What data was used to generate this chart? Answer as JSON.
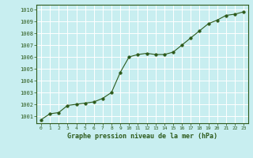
{
  "x": [
    0,
    1,
    2,
    3,
    4,
    5,
    6,
    7,
    8,
    9,
    10,
    11,
    12,
    13,
    14,
    15,
    16,
    17,
    18,
    19,
    20,
    21,
    22,
    23
  ],
  "y": [
    1000.7,
    1001.2,
    1001.3,
    1001.9,
    1002.0,
    1002.1,
    1002.2,
    1002.5,
    1003.0,
    1004.7,
    1006.0,
    1006.2,
    1006.3,
    1006.2,
    1006.2,
    1006.4,
    1007.0,
    1007.6,
    1008.2,
    1008.8,
    1009.1,
    1009.5,
    1009.6,
    1009.8
  ],
  "line_color": "#2d5a1b",
  "marker_color": "#2d5a1b",
  "bg_color": "#c8eef0",
  "grid_color": "#ffffff",
  "xlabel": "Graphe pression niveau de la mer (hPa)",
  "xlabel_color": "#2d5a1b",
  "tick_color": "#2d5a1b",
  "ylim": [
    1000.4,
    1010.4
  ],
  "xlim": [
    -0.5,
    23.5
  ],
  "yticks": [
    1001,
    1002,
    1003,
    1004,
    1005,
    1006,
    1007,
    1008,
    1009,
    1010
  ],
  "xticks": [
    0,
    1,
    2,
    3,
    4,
    5,
    6,
    7,
    8,
    9,
    10,
    11,
    12,
    13,
    14,
    15,
    16,
    17,
    18,
    19,
    20,
    21,
    22,
    23
  ]
}
